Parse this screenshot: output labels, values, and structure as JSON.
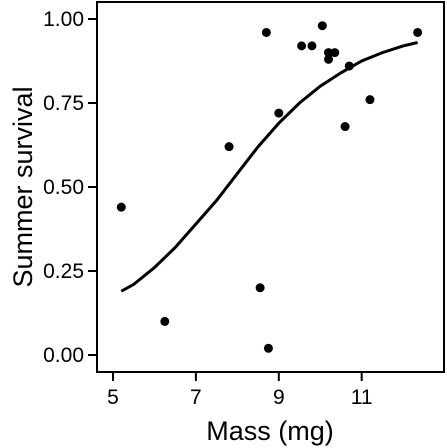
{
  "chart_data": {
    "type": "scatter",
    "xlabel": "Mass (mg)",
    "ylabel": "Summer survival",
    "xlim": [
      5,
      12.6
    ],
    "ylim": [
      0,
      1
    ],
    "x_ticks": [
      5,
      7,
      9,
      11
    ],
    "x_tick_labels": [
      "5",
      "7",
      "9",
      "11"
    ],
    "y_ticks": [
      0,
      0.25,
      0.5,
      0.75,
      1
    ],
    "y_tick_labels": [
      "0.00",
      "0.25",
      "0.50",
      "0.75",
      "1.00"
    ],
    "grid": false,
    "series": [
      {
        "kind": "points",
        "points": [
          {
            "x": 5.2,
            "y": 0.44
          },
          {
            "x": 6.25,
            "y": 0.1
          },
          {
            "x": 7.8,
            "y": 0.62
          },
          {
            "x": 8.55,
            "y": 0.2
          },
          {
            "x": 8.7,
            "y": 0.96
          },
          {
            "x": 8.75,
            "y": 0.02
          },
          {
            "x": 9.0,
            "y": 0.72
          },
          {
            "x": 9.55,
            "y": 0.92
          },
          {
            "x": 9.8,
            "y": 0.92
          },
          {
            "x": 10.05,
            "y": 0.98
          },
          {
            "x": 10.2,
            "y": 0.88
          },
          {
            "x": 10.2,
            "y": 0.9
          },
          {
            "x": 10.35,
            "y": 0.9
          },
          {
            "x": 10.6,
            "y": 0.68
          },
          {
            "x": 10.7,
            "y": 0.86
          },
          {
            "x": 11.2,
            "y": 0.76
          },
          {
            "x": 12.35,
            "y": 0.96
          }
        ]
      },
      {
        "kind": "fitted-curve",
        "x": [
          5.2,
          5.5,
          6.0,
          6.5,
          7.0,
          7.5,
          8.0,
          8.5,
          9.0,
          9.5,
          10.0,
          10.5,
          11.0,
          11.5,
          12.0,
          12.35
        ],
        "values": [
          0.19,
          0.21,
          0.26,
          0.32,
          0.39,
          0.46,
          0.54,
          0.62,
          0.69,
          0.75,
          0.8,
          0.84,
          0.875,
          0.9,
          0.92,
          0.93
        ]
      }
    ]
  }
}
